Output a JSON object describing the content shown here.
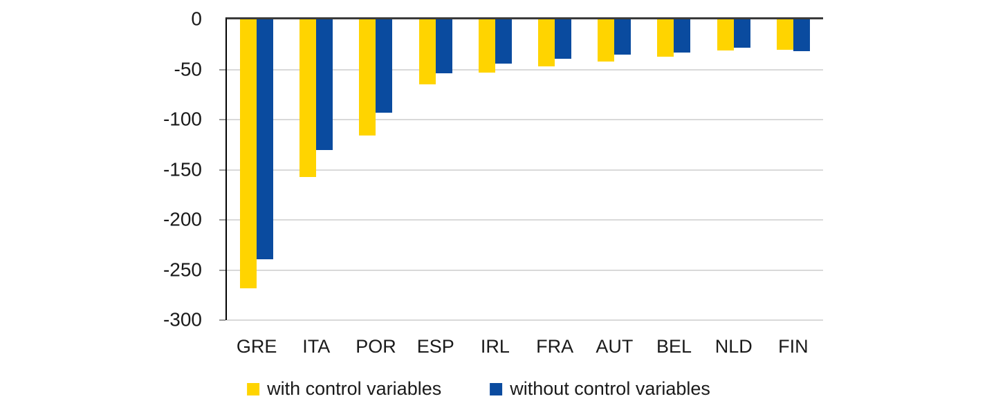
{
  "chart_data": {
    "type": "bar",
    "title": "",
    "xlabel": "",
    "ylabel": "",
    "categories": [
      "GRE",
      "ITA",
      "POR",
      "ESP",
      "IRL",
      "FRA",
      "AUT",
      "BEL",
      "NLD",
      "FIN"
    ],
    "series": [
      {
        "name": "with control variables",
        "color": "#FFD400",
        "values": [
          -268,
          -157,
          -116,
          -65,
          -53,
          -47,
          -42,
          -37,
          -31,
          -30
        ]
      },
      {
        "name": "without control variables",
        "color": "#0A4B9F",
        "values": [
          -239,
          -130,
          -93,
          -54,
          -44,
          -39,
          -35,
          -33,
          -28,
          -32
        ]
      }
    ],
    "ylim": [
      -300,
      0
    ],
    "ytick_interval": 50,
    "ytick_labels": [
      "0",
      "-50",
      "-100",
      "-150",
      "-200",
      "-250",
      "-300"
    ],
    "grid": true,
    "legend_position": "bottom",
    "colors": {
      "grid": "#D9D9D9",
      "zero_line": "#3A3A3A",
      "axis": "#000000",
      "tick": "#9A9A9A",
      "text": "#1A1A1A",
      "background": "#FFFFFF"
    }
  }
}
